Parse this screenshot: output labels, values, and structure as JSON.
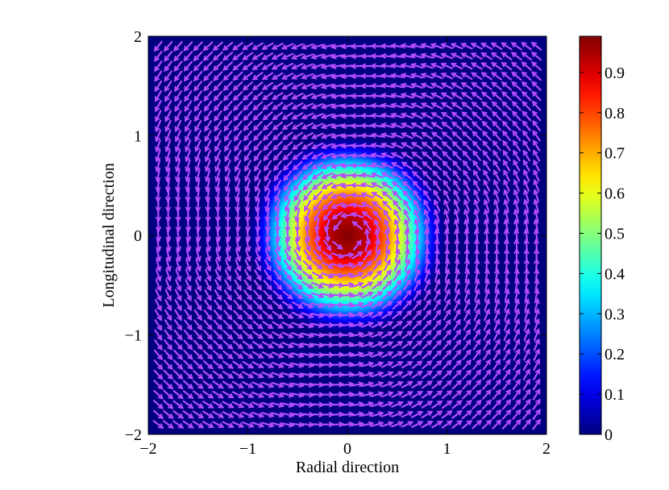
{
  "chart_data": {
    "type": "heatmap",
    "title": "",
    "xlabel": "Radial direction",
    "ylabel": "Longitudinal direction",
    "xlim": [
      -2,
      2
    ],
    "ylim": [
      -2,
      2
    ],
    "x_ticks": [
      -2,
      -1,
      0,
      1,
      2
    ],
    "y_ticks": [
      -2,
      -1,
      0,
      1,
      2
    ],
    "x_tick_labels": [
      "−2",
      "−1",
      "0",
      "1",
      "2"
    ],
    "y_tick_labels": [
      "−2",
      "−1",
      "0",
      "1",
      "2"
    ],
    "grid": false,
    "colormap": "jet",
    "colorbar": {
      "limits": [
        0,
        0.99
      ],
      "ticks": [
        0,
        0.1,
        0.2,
        0.3,
        0.4,
        0.5,
        0.6,
        0.7,
        0.8,
        0.9
      ],
      "tick_labels": [
        "0",
        "0.1",
        "0.2",
        "0.3",
        "0.4",
        "0.5",
        "0.6",
        "0.7",
        "0.8",
        "0.9"
      ]
    },
    "field": {
      "description_of_values": "intensity peaks at ~0.99 at the origin and decays radially to 0 beyond r≈1",
      "peak_value": 0.99,
      "center": [
        0,
        0
      ],
      "approx_zero_radius": 1.0,
      "samples_r": [
        0,
        0.2,
        0.4,
        0.6,
        0.7,
        0.8,
        0.9,
        1.0
      ],
      "samples_value": [
        0.99,
        0.93,
        0.75,
        0.5,
        0.36,
        0.2,
        0.07,
        0.0
      ]
    },
    "quiver": {
      "color": "#b54dff",
      "pattern": "counter-clockwise swirl around origin",
      "grid_x": [
        -1.9,
        -1.8,
        -1.7,
        -1.6,
        -1.5,
        -1.4,
        -1.3,
        -1.2,
        -1.1,
        -1.0,
        -0.9,
        -0.8,
        -0.7,
        -0.6,
        -0.5,
        -0.4,
        -0.3,
        -0.2,
        -0.1,
        0.0,
        0.1,
        0.2,
        0.3,
        0.4,
        0.5,
        0.6,
        0.7,
        0.8,
        0.9,
        1.0,
        1.1,
        1.2,
        1.3,
        1.4,
        1.5,
        1.6,
        1.7,
        1.8,
        1.9
      ],
      "grid_y": [
        -1.9,
        -1.8,
        -1.7,
        -1.6,
        -1.5,
        -1.4,
        -1.3,
        -1.2,
        -1.1,
        -1.0,
        -0.9,
        -0.8,
        -0.7,
        -0.6,
        -0.5,
        -0.4,
        -0.3,
        -0.2,
        -0.1,
        0.0,
        0.1,
        0.2,
        0.3,
        0.4,
        0.5,
        0.6,
        0.7,
        0.8,
        0.9,
        1.0,
        1.1,
        1.2,
        1.3,
        1.4,
        1.5,
        1.6,
        1.7,
        1.8,
        1.9
      ]
    }
  }
}
